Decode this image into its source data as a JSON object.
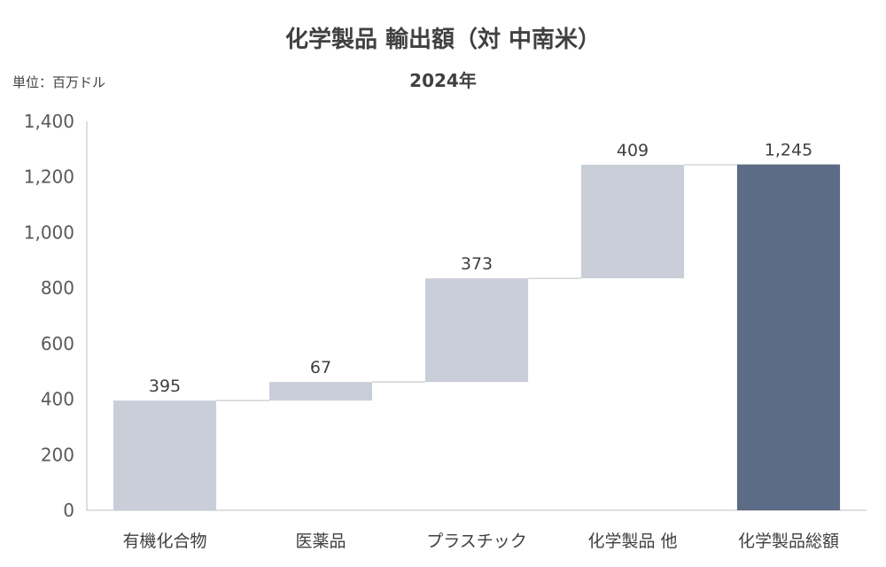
{
  "title": "化学製品 輸出額（対 中南米）",
  "subtitle": "2024年",
  "unit_label": "単位：百万ドル",
  "colors": {
    "part": "#c9ced9",
    "total": "#5c6b86",
    "axis": "#bfbfbf",
    "connector": "#c8c8c8"
  },
  "chart_data": {
    "type": "bar",
    "subtype": "waterfall",
    "categories": [
      "有機化合物",
      "医薬品",
      "プラスチック",
      "化学製品 他",
      "化学製品総額"
    ],
    "values": [
      395,
      67,
      373,
      409,
      1245
    ],
    "data_labels": [
      "395",
      "67",
      "373",
      "409",
      "1,245"
    ],
    "is_total": [
      false,
      false,
      false,
      false,
      true
    ],
    "ylim": [
      0,
      1400
    ],
    "yticks": [
      0,
      200,
      400,
      600,
      800,
      1000,
      1200,
      1400
    ],
    "ytick_labels": [
      "0",
      "200",
      "400",
      "600",
      "800",
      "1,000",
      "1,200",
      "1,400"
    ],
    "grid": false,
    "legend": "none"
  }
}
